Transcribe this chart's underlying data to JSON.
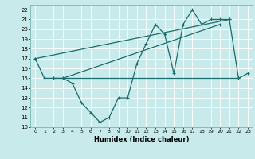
{
  "title": "",
  "xlabel": "Humidex (Indice chaleur)",
  "bg_color": "#c8eaea",
  "line_color": "#1a6b6b",
  "grid_color": "#b0d8d8",
  "xlim": [
    -0.5,
    23.5
  ],
  "ylim": [
    10,
    22.5
  ],
  "xticks": [
    0,
    1,
    2,
    3,
    4,
    5,
    6,
    7,
    8,
    9,
    10,
    11,
    12,
    13,
    14,
    15,
    16,
    17,
    18,
    19,
    20,
    21,
    22,
    23
  ],
  "yticks": [
    10,
    11,
    12,
    13,
    14,
    15,
    16,
    17,
    18,
    19,
    20,
    21,
    22
  ],
  "series": [
    {
      "x": [
        0,
        1,
        2,
        3,
        4,
        5,
        6,
        7,
        8,
        9,
        10,
        11,
        12,
        13,
        14,
        15,
        16,
        17,
        18,
        19,
        20,
        21,
        22,
        23
      ],
      "y": [
        17,
        15,
        15,
        15,
        14.5,
        12.5,
        11.5,
        10.5,
        11,
        13,
        13,
        16.5,
        18.5,
        20.5,
        19.5,
        15.5,
        20.5,
        22,
        20.5,
        21,
        21,
        21,
        15,
        15.5
      ]
    },
    {
      "x": [
        2,
        22
      ],
      "y": [
        15,
        15
      ]
    },
    {
      "x": [
        0,
        21
      ],
      "y": [
        17,
        21
      ]
    },
    {
      "x": [
        3,
        20
      ],
      "y": [
        15,
        20.5
      ]
    }
  ]
}
